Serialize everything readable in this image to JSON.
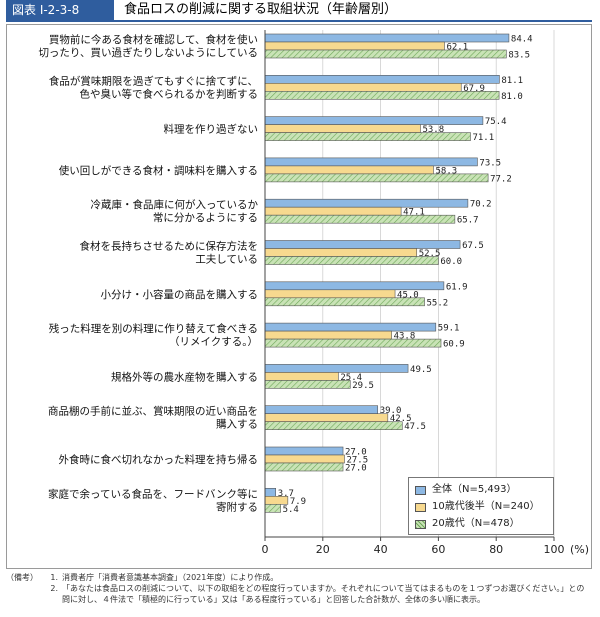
{
  "figure": {
    "tag": "図表 I-2-3-8",
    "title": "食品ロスの削減に関する取組状況（年齢層別）"
  },
  "colors": {
    "all": "#8db8e3",
    "teen": "#f7d98f",
    "twenties": "#a9d18e",
    "header": "#2f5d9e"
  },
  "chart_data": {
    "type": "bar",
    "orientation": "horizontal",
    "xlim": [
      0,
      100
    ],
    "xticks": [
      "0",
      "20",
      "40",
      "60",
      "80",
      "100"
    ],
    "xunit": "(%)",
    "categories": [
      [
        "買物前に今ある食材を確認して、食材を使い",
        "切ったり、買い過ぎたりしないようにしている"
      ],
      [
        "食品が賞味期限を過ぎてもすぐに捨てずに、",
        "色や臭い等で食べられるかを判断する"
      ],
      [
        "料理を作り過ぎない"
      ],
      [
        "使い回しができる食材・調味料を購入する"
      ],
      [
        "冷蔵庫・食品庫に何が入っているか",
        "常に分かるようにする"
      ],
      [
        "食材を長持ちさせるために保存方法を",
        "工夫している"
      ],
      [
        "小分け・小容量の商品を購入する"
      ],
      [
        "残った料理を別の料理に作り替えて食べきる",
        "（リメイクする。）"
      ],
      [
        "規格外等の農水産物を購入する"
      ],
      [
        "商品棚の手前に並ぶ、賞味期限の近い商品を",
        "購入する"
      ],
      [
        "外食時に食べ切れなかった料理を持ち帰る"
      ],
      [
        "家庭で余っている食品を、フードバンク等に",
        "寄附する"
      ]
    ],
    "series": [
      {
        "name": "全体（N=5,493）",
        "key": "all",
        "values": [
          84.4,
          81.1,
          75.4,
          73.5,
          70.2,
          67.5,
          61.9,
          59.1,
          49.5,
          39.0,
          27.0,
          3.7
        ],
        "labels": [
          "84.4",
          "81.1",
          "75.4",
          "73.5",
          "70.2",
          "67.5",
          "61.9",
          "59.1",
          "49.5",
          "39.0",
          "27.0",
          "3.7"
        ]
      },
      {
        "name": "10歳代後半（N=240）",
        "key": "teen",
        "values": [
          62.1,
          67.9,
          53.8,
          58.3,
          47.1,
          52.5,
          45.0,
          43.8,
          25.4,
          42.5,
          27.5,
          7.9
        ],
        "labels": [
          "62.1",
          "67.9",
          "53.8",
          "58.3",
          "47.1",
          "52.5",
          "45.0",
          "43.8",
          "25.4",
          "42.5",
          "27.5",
          "7.9"
        ]
      },
      {
        "name": "20歳代（N=478）",
        "key": "twenties",
        "values": [
          83.5,
          81.0,
          71.1,
          77.2,
          65.7,
          60.0,
          55.2,
          60.9,
          29.5,
          47.5,
          27.0,
          5.4
        ],
        "labels": [
          "83.5",
          "81.0",
          "71.1",
          "77.2",
          "65.7",
          "60.0",
          "55.2",
          "60.9",
          "29.5",
          "47.5",
          "27.0",
          "5.4"
        ]
      }
    ]
  },
  "legend": {
    "items": [
      "全体（N=5,493）",
      "10歳代後半（N=240）",
      "20歳代（N=478）"
    ]
  },
  "notes": {
    "label": "（備考）",
    "items": [
      {
        "num": "1.",
        "text": "消費者庁「消費者意識基本調査」（2021年度）により作成。"
      },
      {
        "num": "2.",
        "text": "「あなたは食品ロスの削減について、以下の取組をどの程度行っていますか。それぞれについて当てはまるものを１つずつお選びください。」との問に対し、４件法で「積極的に行っている」又は「ある程度行っている」と回答した合計数が、全体の多い順に表示。"
      }
    ]
  }
}
